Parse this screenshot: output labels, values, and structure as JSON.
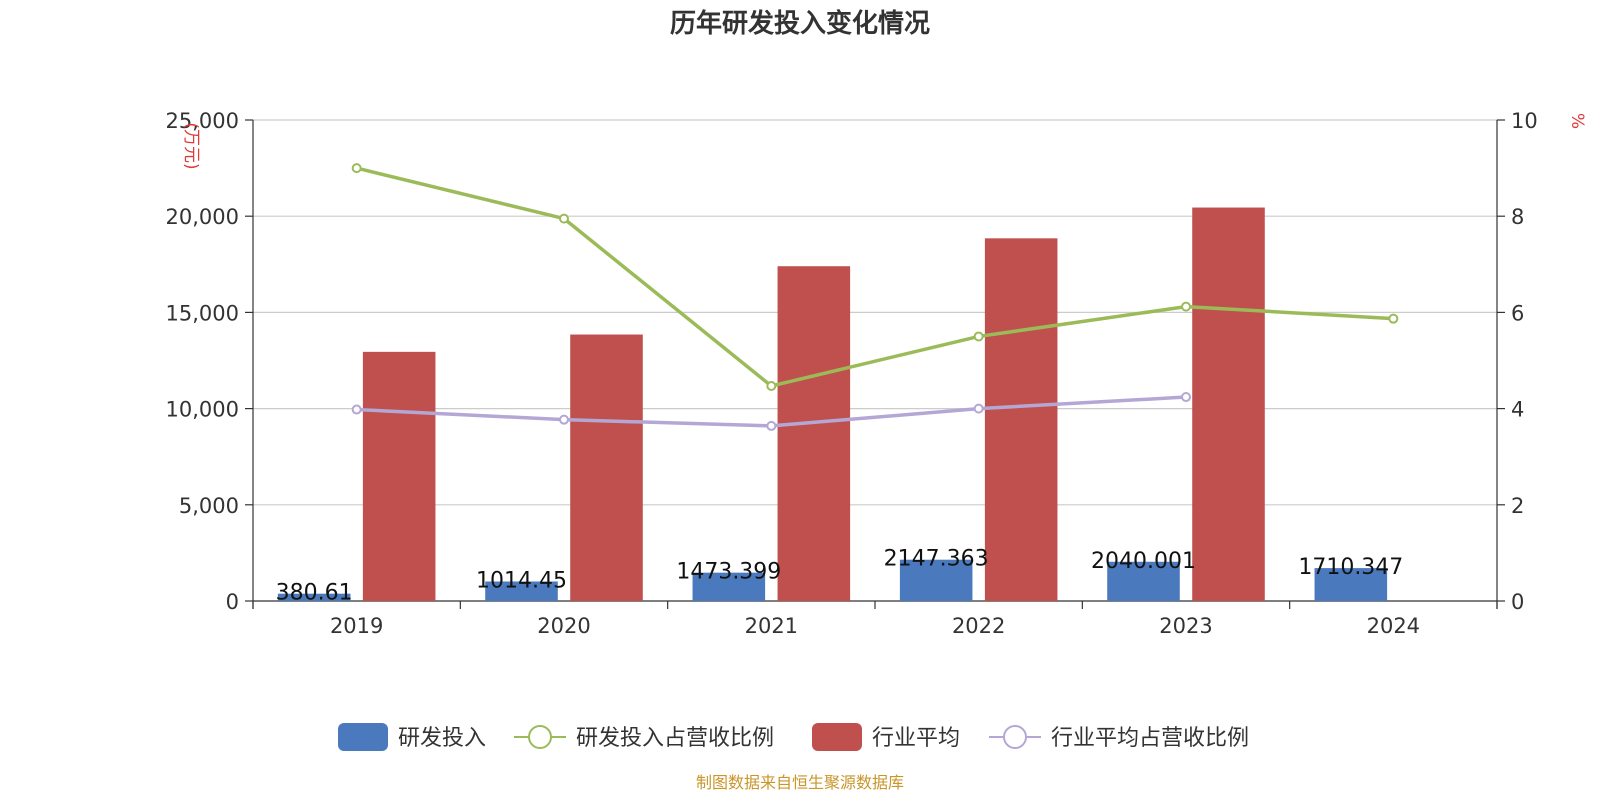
{
  "colors": {
    "rd": "#4a7abd",
    "rd_ratio": "#9bbb59",
    "industry": "#c0504d",
    "industry_ratio": "#b4a7d6",
    "unit_text": "#e03a3a",
    "source_text": "#c9962a"
  },
  "chart_data": {
    "type": "bar",
    "title": "历年研发投入变化情况",
    "categories": [
      "2019",
      "2020",
      "2021",
      "2022",
      "2023",
      "2024"
    ],
    "y_left": {
      "label": "(万元)",
      "ticks": [
        "0",
        "5,000",
        "10,000",
        "15,000",
        "20,000",
        "25,000"
      ],
      "ylim": [
        0,
        25000
      ]
    },
    "y_right": {
      "label": "%",
      "ticks": [
        "0",
        "2",
        "4",
        "6",
        "8",
        "10"
      ],
      "ylim": [
        0,
        10
      ]
    },
    "series": [
      {
        "name": "研发投入",
        "type": "bar",
        "axis": "left",
        "values": [
          380.61,
          1014.45,
          1473.399,
          2147.363,
          2040.001,
          1710.347
        ],
        "labels": [
          "380.61",
          "1014.45",
          "1473.399",
          "2147.363",
          "2040.001",
          "1710.347"
        ]
      },
      {
        "name": "研发投入占营收比例",
        "type": "line",
        "axis": "right",
        "values": [
          9.0,
          7.95,
          4.47,
          5.5,
          6.12,
          5.87
        ]
      },
      {
        "name": "行业平均",
        "type": "bar",
        "axis": "left",
        "values": [
          12950,
          13850,
          17400,
          18850,
          20450,
          null
        ]
      },
      {
        "name": "行业平均占营收比例",
        "type": "line",
        "axis": "right",
        "values": [
          3.98,
          3.77,
          3.64,
          4.0,
          4.24,
          null
        ]
      }
    ],
    "grid": true,
    "legend_position": "bottom"
  },
  "source_note": "制图数据来自恒生聚源数据库"
}
